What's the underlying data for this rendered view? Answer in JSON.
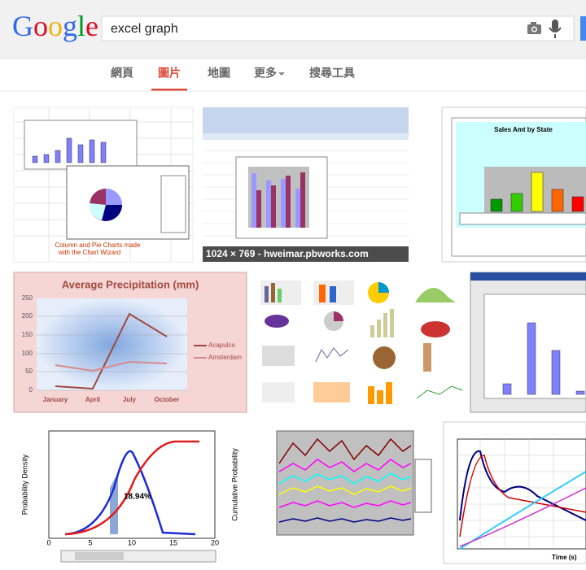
{
  "header": {
    "logo": "Google",
    "query": "excel graph"
  },
  "tabs": [
    "網頁",
    "圖片",
    "地圖",
    "更多",
    "搜尋工具"
  ],
  "results": [
    {
      "caption": [
        "Column and Pie Charts made",
        "with the Chart Wizard"
      ]
    },
    {
      "overlay": "1024 × 769 - hweimar.pbworks.com"
    },
    {
      "title": "Sales Amt by State"
    },
    {
      "title": "Average Precipitation (mm)",
      "legend": [
        "Acapulco",
        "Amsterdam"
      ],
      "x_labels": [
        "January",
        "April",
        "July",
        "October"
      ],
      "y_labels": [
        "0",
        "50",
        "100",
        "150",
        "200",
        "250"
      ]
    },
    {},
    {},
    {
      "annotation": "18.94%",
      "x_labels": [
        "0",
        "5",
        "10",
        "15",
        "20"
      ],
      "y_label": "Probability Density",
      "y2_label": "Cumulative Probability"
    },
    {},
    {
      "x_label": "Time (s)"
    }
  ]
}
